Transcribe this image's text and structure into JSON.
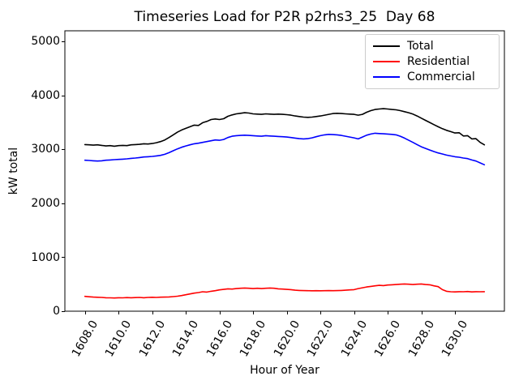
{
  "figure": {
    "background": "#ffffff"
  },
  "chart_data": {
    "type": "line",
    "title": "Timeseries Load for P2R p2rhs3_25  Day 68",
    "xlabel": "Hour of Year",
    "ylabel": "kW total",
    "xlim": [
      1606.81,
      1632.94
    ],
    "ylim": [
      0,
      5200
    ],
    "xticks": [
      1608,
      1610,
      1612,
      1614,
      1616,
      1618,
      1620,
      1622,
      1624,
      1626,
      1628,
      1630
    ],
    "xtick_labels": [
      "1608.0",
      "1610.0",
      "1612.0",
      "1614.0",
      "1616.0",
      "1618.0",
      "1620.0",
      "1622.0",
      "1624.0",
      "1626.0",
      "1628.0",
      "1630.0"
    ],
    "xtick_rotation_deg": 60,
    "yticks": [
      0,
      1000,
      2000,
      3000,
      4000,
      5000
    ],
    "ytick_labels": [
      "0",
      "1000",
      "2000",
      "3000",
      "4000",
      "5000"
    ],
    "grid": false,
    "legend": {
      "position": "upper right",
      "border_color": "#cccccc"
    },
    "x": [
      1608.0,
      1608.25,
      1608.5,
      1608.75,
      1609.0,
      1609.25,
      1609.5,
      1609.75,
      1610.0,
      1610.25,
      1610.5,
      1610.75,
      1611.0,
      1611.25,
      1611.5,
      1611.75,
      1612.0,
      1612.25,
      1612.5,
      1612.75,
      1613.0,
      1613.25,
      1613.5,
      1613.75,
      1614.0,
      1614.25,
      1614.5,
      1614.75,
      1615.0,
      1615.25,
      1615.5,
      1615.75,
      1616.0,
      1616.25,
      1616.5,
      1616.75,
      1617.0,
      1617.25,
      1617.5,
      1617.75,
      1618.0,
      1618.25,
      1618.5,
      1618.75,
      1619.0,
      1619.25,
      1619.5,
      1619.75,
      1620.0,
      1620.25,
      1620.5,
      1620.75,
      1621.0,
      1621.25,
      1621.5,
      1621.75,
      1622.0,
      1622.25,
      1622.5,
      1622.75,
      1623.0,
      1623.25,
      1623.5,
      1623.75,
      1624.0,
      1624.25,
      1624.5,
      1624.75,
      1625.0,
      1625.25,
      1625.5,
      1625.75,
      1626.0,
      1626.25,
      1626.5,
      1626.75,
      1627.0,
      1627.25,
      1627.5,
      1627.75,
      1628.0,
      1628.25,
      1628.5,
      1628.75,
      1629.0,
      1629.25,
      1629.5,
      1629.75,
      1630.0,
      1630.25,
      1630.5,
      1630.75,
      1631.0,
      1631.25,
      1631.5,
      1631.75
    ],
    "series": [
      {
        "name": "Total",
        "color": "#000000",
        "values": [
          3090,
          3085,
          3080,
          3085,
          3075,
          3065,
          3070,
          3060,
          3070,
          3075,
          3070,
          3085,
          3090,
          3095,
          3105,
          3100,
          3110,
          3125,
          3145,
          3175,
          3220,
          3270,
          3320,
          3360,
          3390,
          3420,
          3450,
          3445,
          3495,
          3520,
          3555,
          3565,
          3555,
          3570,
          3615,
          3640,
          3660,
          3670,
          3680,
          3675,
          3660,
          3655,
          3650,
          3660,
          3655,
          3650,
          3655,
          3650,
          3645,
          3635,
          3620,
          3610,
          3600,
          3595,
          3600,
          3610,
          3620,
          3635,
          3650,
          3665,
          3670,
          3665,
          3660,
          3655,
          3650,
          3635,
          3650,
          3690,
          3720,
          3740,
          3750,
          3755,
          3750,
          3740,
          3735,
          3720,
          3700,
          3680,
          3655,
          3620,
          3580,
          3540,
          3500,
          3460,
          3420,
          3385,
          3355,
          3330,
          3305,
          3310,
          3250,
          3255,
          3195,
          3200,
          3130,
          3085
        ]
      },
      {
        "name": "Residential",
        "color": "#ff0000",
        "values": [
          275,
          268,
          262,
          258,
          255,
          250,
          248,
          245,
          250,
          248,
          252,
          250,
          252,
          255,
          250,
          255,
          258,
          255,
          260,
          262,
          265,
          270,
          278,
          290,
          305,
          320,
          335,
          345,
          360,
          355,
          370,
          380,
          395,
          405,
          415,
          410,
          420,
          425,
          430,
          425,
          420,
          425,
          420,
          425,
          430,
          425,
          415,
          410,
          405,
          400,
          390,
          385,
          382,
          380,
          378,
          380,
          378,
          380,
          382,
          380,
          382,
          385,
          390,
          395,
          400,
          420,
          435,
          450,
          460,
          470,
          480,
          475,
          485,
          490,
          495,
          500,
          505,
          500,
          495,
          500,
          505,
          495,
          490,
          470,
          455,
          400,
          370,
          360,
          358,
          362,
          360,
          365,
          358,
          362,
          360,
          362
        ]
      },
      {
        "name": "Commercial",
        "color": "#0000ff",
        "values": [
          2800,
          2795,
          2790,
          2785,
          2790,
          2800,
          2805,
          2810,
          2815,
          2820,
          2825,
          2835,
          2840,
          2850,
          2860,
          2865,
          2870,
          2880,
          2890,
          2910,
          2940,
          2975,
          3010,
          3040,
          3065,
          3085,
          3105,
          3115,
          3130,
          3145,
          3160,
          3175,
          3170,
          3185,
          3220,
          3245,
          3255,
          3260,
          3265,
          3260,
          3255,
          3250,
          3245,
          3255,
          3250,
          3245,
          3240,
          3235,
          3230,
          3220,
          3210,
          3200,
          3195,
          3200,
          3215,
          3235,
          3255,
          3270,
          3280,
          3275,
          3270,
          3260,
          3245,
          3230,
          3215,
          3195,
          3230,
          3265,
          3285,
          3300,
          3295,
          3290,
          3285,
          3280,
          3270,
          3245,
          3210,
          3170,
          3130,
          3090,
          3050,
          3020,
          2990,
          2960,
          2935,
          2915,
          2895,
          2880,
          2865,
          2855,
          2840,
          2830,
          2805,
          2785,
          2750,
          2715
        ]
      }
    ]
  }
}
